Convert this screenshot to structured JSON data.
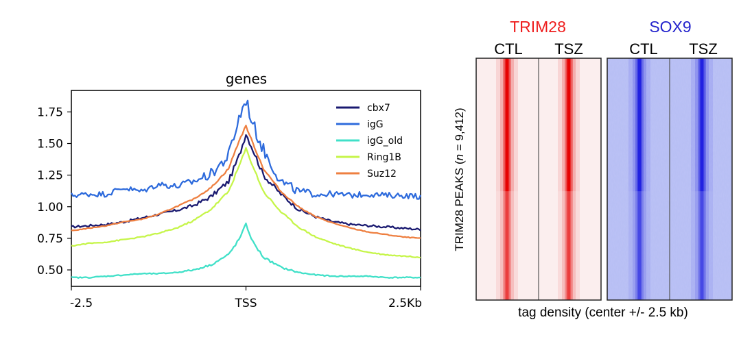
{
  "chart_data": [
    {
      "type": "line",
      "title": "genes",
      "xlabel": "",
      "ylabel": "",
      "x_ticks": [
        "-2.5",
        "TSS",
        "2.5Kb"
      ],
      "xlim": [
        -2.5,
        2.5
      ],
      "y_ticks": [
        "0.50",
        "0.75",
        "1.00",
        "1.25",
        "1.50",
        "1.75"
      ],
      "ylim": [
        0.37,
        1.92
      ],
      "legend_position": "top-right",
      "x": [
        -2.5,
        -2.25,
        -2.0,
        -1.75,
        -1.5,
        -1.25,
        -1.0,
        -0.75,
        -0.5,
        -0.25,
        -0.1,
        0.0,
        0.1,
        0.25,
        0.5,
        0.75,
        1.0,
        1.25,
        1.5,
        1.75,
        2.0,
        2.25,
        2.5
      ],
      "series": [
        {
          "name": "cbx7",
          "color": "#191970",
          "values": [
            0.84,
            0.85,
            0.86,
            0.88,
            0.91,
            0.94,
            0.97,
            1.01,
            1.08,
            1.2,
            1.4,
            1.58,
            1.45,
            1.25,
            1.1,
            0.98,
            0.92,
            0.88,
            0.86,
            0.85,
            0.84,
            0.83,
            0.82
          ]
        },
        {
          "name": "igG",
          "color": "#2e6bdc",
          "values": [
            1.09,
            1.1,
            1.1,
            1.15,
            1.12,
            1.18,
            1.16,
            1.2,
            1.26,
            1.4,
            1.7,
            1.85,
            1.65,
            1.45,
            1.2,
            1.12,
            1.1,
            1.1,
            1.09,
            1.1,
            1.09,
            1.09,
            1.08
          ]
        },
        {
          "name": "igG_old",
          "color": "#40e0c8",
          "values": [
            0.44,
            0.44,
            0.45,
            0.46,
            0.47,
            0.47,
            0.48,
            0.5,
            0.54,
            0.62,
            0.74,
            0.86,
            0.72,
            0.6,
            0.52,
            0.48,
            0.46,
            0.45,
            0.45,
            0.45,
            0.44,
            0.44,
            0.44
          ]
        },
        {
          "name": "Ring1B",
          "color": "#c6f54a",
          "values": [
            0.69,
            0.71,
            0.72,
            0.74,
            0.76,
            0.79,
            0.83,
            0.89,
            0.98,
            1.12,
            1.32,
            1.46,
            1.32,
            1.12,
            0.96,
            0.84,
            0.76,
            0.71,
            0.67,
            0.64,
            0.62,
            0.61,
            0.6
          ]
        },
        {
          "name": "Suz12",
          "color": "#ee7f40",
          "values": [
            0.81,
            0.83,
            0.85,
            0.88,
            0.9,
            0.94,
            1.0,
            1.06,
            1.15,
            1.3,
            1.52,
            1.64,
            1.5,
            1.3,
            1.12,
            1.0,
            0.92,
            0.87,
            0.83,
            0.8,
            0.78,
            0.76,
            0.75
          ]
        }
      ]
    },
    {
      "type": "heatmap",
      "groups": [
        {
          "label": "TRIM28",
          "color": "#ee1c1c",
          "columns": [
            "CTL",
            "TSZ"
          ],
          "base_color": "#fbeeee",
          "signal_color": "#e60000"
        },
        {
          "label": "SOX9",
          "color": "#2222cc",
          "columns": [
            "CTL",
            "TSZ"
          ],
          "base_color": "#b8bff4",
          "signal_color": "#2020e0"
        }
      ],
      "ylabel": "TRIM28 PEAKS (n = 9,412)",
      "ylabel_prefix": "TRIM28 PEAKS (",
      "ylabel_n": "n",
      "ylabel_suffix": " = 9,412)",
      "xlabel": "tag density (center +/- 2.5 kb)"
    }
  ]
}
